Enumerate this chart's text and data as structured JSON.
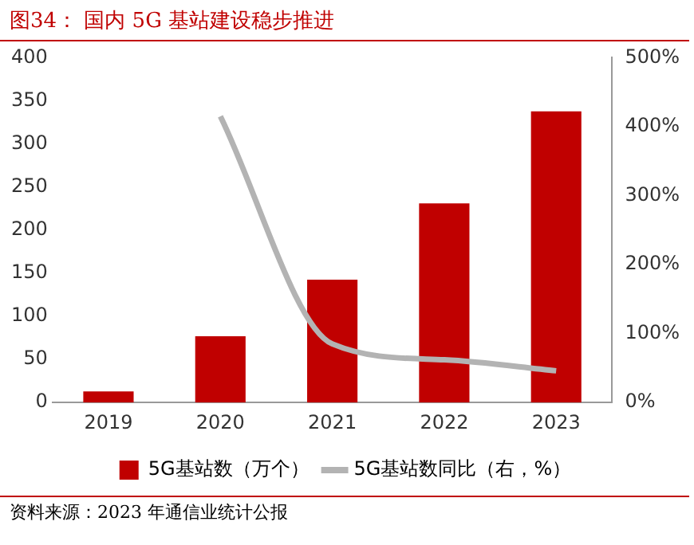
{
  "chart_data": {
    "type": "bar",
    "title": "图34：  国内 5G 基站建设稳步推进",
    "categories": [
      "2019",
      "2020",
      "2021",
      "2022",
      "2023"
    ],
    "series": [
      {
        "name": "5G基站数（万个）",
        "color": "#c00000",
        "values": [
          13,
          77,
          142.5,
          231,
          337.7
        ]
      },
      {
        "name": "5G基站数同比（右，%）",
        "type": "line",
        "axis": "y2",
        "color": "#b3b3b3",
        "values": [
          null,
          415,
          85,
          62,
          46
        ]
      }
    ],
    "ylim": [
      0,
      400
    ],
    "yticks": [
      0,
      50,
      100,
      150,
      200,
      250,
      300,
      350,
      400
    ],
    "y2lim": [
      0,
      500
    ],
    "y2ticks": [
      {
        "value": 0,
        "label": "0%"
      },
      {
        "value": 100,
        "label": "100%"
      },
      {
        "value": 200,
        "label": "200%"
      },
      {
        "value": 300,
        "label": "300%"
      },
      {
        "value": 400,
        "label": "400%"
      },
      {
        "value": 500,
        "label": "500%"
      }
    ],
    "grid": false,
    "legend": "bottom",
    "marker": "none",
    "annotations": [
      "资料来源：2023 年通信业统计公报"
    ]
  }
}
